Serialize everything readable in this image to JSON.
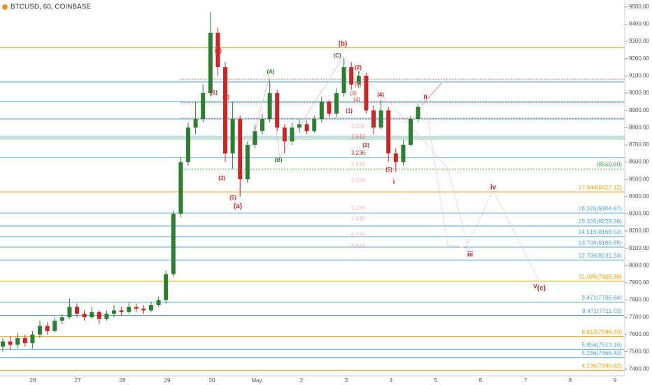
{
  "chart_data": {
    "type": "candlestick",
    "title": "BTCUSD, 60, COINBASE",
    "up_color": "#2e7d32",
    "down_color": "#c62828",
    "categories": [
      "26",
      "27",
      "28",
      "29",
      "30",
      "May",
      "2",
      "3",
      "4",
      "5",
      "6",
      "7",
      "8",
      "9"
    ],
    "open": [
      7530,
      7560,
      7540,
      7580,
      7550,
      7600,
      7650,
      7620,
      7680,
      7700,
      7760,
      7720,
      7700,
      7730,
      7690,
      7720,
      7740,
      7730,
      7760,
      7750,
      7740,
      7770,
      7800,
      7950,
      8300,
      8600,
      8800,
      8850,
      9000,
      9350,
      9150,
      8650,
      8850,
      8500,
      8700,
      8780,
      8850,
      9000,
      8800,
      8720,
      8800,
      8820,
      8780,
      8850,
      8950,
      8880,
      9000,
      9150,
      9050,
      9100,
      8900,
      8800,
      8900,
      8650,
      8600,
      8700,
      8850
    ],
    "high": [
      7580,
      7590,
      7610,
      7600,
      7620,
      7680,
      7670,
      7700,
      7720,
      7810,
      7780,
      7740,
      7760,
      7740,
      7740,
      7770,
      7760,
      7790,
      7780,
      7770,
      7790,
      7820,
      7970,
      8320,
      8630,
      8830,
      8950,
      9050,
      9470,
      9380,
      9180,
      8950,
      8870,
      8720,
      8820,
      8880,
      9070,
      9020,
      8820,
      8830,
      8850,
      8840,
      8870,
      8980,
      8960,
      9030,
      9200,
      9180,
      9130,
      9120,
      8930,
      8960,
      8920,
      8680,
      8730,
      8870,
      8940
    ],
    "low": [
      7500,
      7510,
      7520,
      7530,
      7520,
      7580,
      7600,
      7610,
      7660,
      7690,
      7700,
      7680,
      7690,
      7660,
      7680,
      7700,
      7710,
      7720,
      7730,
      7720,
      7730,
      7760,
      7780,
      7930,
      8280,
      8580,
      8760,
      8830,
      8980,
      9100,
      8600,
      8560,
      8400,
      8480,
      8680,
      8760,
      8830,
      8780,
      8650,
      8700,
      8770,
      8760,
      8770,
      8830,
      8860,
      8860,
      8980,
      9020,
      9030,
      8880,
      8760,
      8790,
      8600,
      8540,
      8580,
      8690,
      8830
    ],
    "close": [
      7560,
      7540,
      7580,
      7550,
      7600,
      7650,
      7620,
      7680,
      7700,
      7760,
      7720,
      7700,
      7730,
      7690,
      7720,
      7740,
      7730,
      7760,
      7750,
      7740,
      7770,
      7800,
      7950,
      8300,
      8600,
      8800,
      8850,
      9000,
      9350,
      9150,
      8650,
      8850,
      8500,
      8700,
      8780,
      8850,
      9000,
      8800,
      8720,
      8800,
      8820,
      8780,
      8850,
      8950,
      8880,
      9000,
      9150,
      9050,
      9100,
      8900,
      8800,
      8900,
      8650,
      8600,
      8700,
      8850,
      8920
    ],
    "ylim": [
      7360,
      9540
    ],
    "yticks": [
      {
        "value": 7400,
        "label": "7400.00"
      },
      {
        "value": 7500,
        "label": "7500.00"
      },
      {
        "value": 7600,
        "label": "7600.00"
      },
      {
        "value": 7700,
        "label": "7700.00"
      },
      {
        "value": 7800,
        "label": "7800.00"
      },
      {
        "value": 7900,
        "label": "7900.00"
      },
      {
        "value": 8000,
        "label": "8000.00"
      },
      {
        "value": 8100,
        "label": "8100.00"
      },
      {
        "value": 8200,
        "label": "8200.00"
      },
      {
        "value": 8300,
        "label": "8300.00"
      },
      {
        "value": 8400,
        "label": "8400.00"
      },
      {
        "value": 8500,
        "label": "8500.00"
      },
      {
        "value": 8600,
        "label": "8600.00"
      },
      {
        "value": 8700,
        "label": "8700.00"
      },
      {
        "value": 8800,
        "label": "8800.00"
      },
      {
        "value": 8900,
        "label": "8900.00"
      },
      {
        "value": 9000,
        "label": "9000.00"
      },
      {
        "value": 9100,
        "label": "9100.00"
      },
      {
        "value": 9200,
        "label": "9200.00"
      },
      {
        "value": 9300,
        "label": "9300.00"
      },
      {
        "value": 9400,
        "label": "9400.00"
      },
      {
        "value": 9500,
        "label": "9500.00"
      }
    ],
    "levels": [
      {
        "price": 9265,
        "color": "#f59e0b"
      },
      {
        "price": 9080,
        "color": "#e57373",
        "dashed": true
      },
      {
        "price": 9065,
        "color": "#4ea3dd"
      },
      {
        "price": 8950,
        "color": "#4ea3dd"
      },
      {
        "price": 8945,
        "color": "#e57373",
        "dashed": true
      },
      {
        "price": 8855,
        "color": "#e57373",
        "dashed": true
      },
      {
        "price": 8850,
        "color": "#4ea3dd"
      },
      {
        "price": 8745,
        "color": "#4ea3dd"
      },
      {
        "price": 8733,
        "color": "#66bb6a"
      },
      {
        "price": 8625,
        "color": "#4ea3dd"
      },
      {
        "price": 8559.8,
        "color": "#43a047",
        "dashed": true,
        "label": "(8559.80)"
      },
      {
        "price": 8427.12,
        "color": "#f59e0b",
        "label": "17.944(8427.12)"
      },
      {
        "price": 8304.87,
        "color": "#4ea3dd",
        "label": "16.325(8304.87)"
      },
      {
        "price": 8229.26,
        "color": "#4ea3dd",
        "label": "15.325(8229.26)"
      },
      {
        "price": 8168.02,
        "color": "#4ea3dd",
        "label": "14.515(8168.02)"
      },
      {
        "price": 8106.85,
        "color": "#4ea3dd",
        "label": "13.706(8106.85)"
      },
      {
        "price": 8031.24,
        "color": "#4ea3dd",
        "label": "12.706(8031.24)"
      },
      {
        "price": 7908.98,
        "color": "#f59e0b",
        "label": "11.089(7908.98)"
      },
      {
        "price": 7786.64,
        "color": "#4ea3dd",
        "label": "9.471(7786.64)"
      },
      {
        "price": 7711.03,
        "color": "#4ea3dd",
        "label": "8.471(7711.03)"
      },
      {
        "price": 7588.7,
        "color": "#f59e0b",
        "label": "6.853(7588.70)"
      },
      {
        "price": 7513.16,
        "color": "#4ea3dd",
        "label": "5.854(7513.16)"
      },
      {
        "price": 7466.43,
        "color": "#4ea3dd",
        "label": "5.236(7466.43)"
      },
      {
        "price": 7390.82,
        "color": "#f59e0b",
        "label": "4.236(7390.82)"
      }
    ],
    "annotations": [
      "(b)",
      "(C)",
      "(A)",
      "(B)",
      "(a)",
      "(c)",
      "(1)",
      "(2)",
      "(3)",
      "(4)",
      "(5)",
      "(1)",
      "(2)",
      "(3)",
      "(4)",
      "(5)",
      "(3)",
      "(5)",
      "(4)",
      "i",
      "ii",
      "iii",
      "iv",
      "v"
    ],
    "fib_ratios": [
      "3.236",
      "2.618",
      "3.236",
      "3.618",
      "4.236",
      "5.236",
      "5.618",
      "6.236",
      "6.618"
    ]
  }
}
